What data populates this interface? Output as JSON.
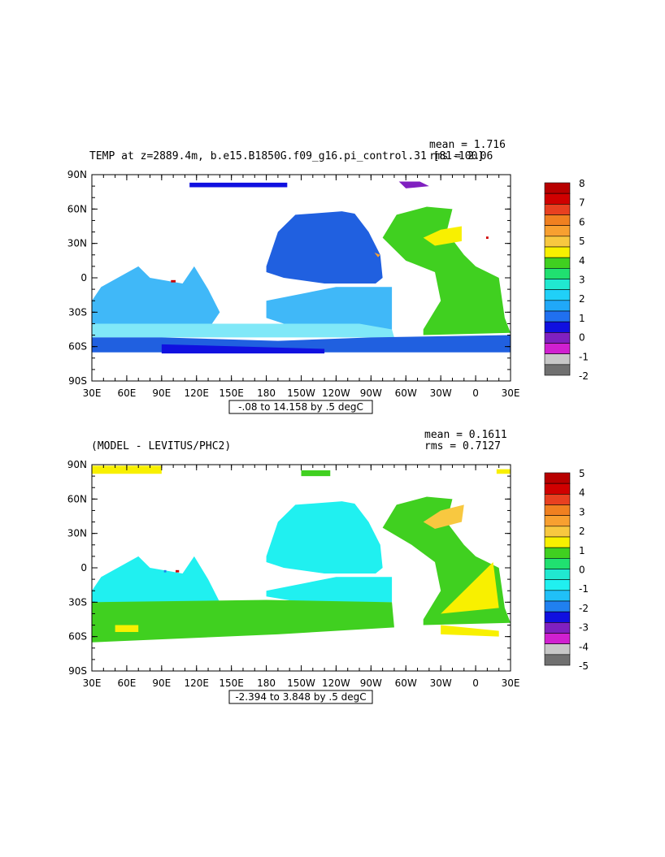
{
  "panels": [
    {
      "title": "TEMP at z=2889.4m, b.e15.B1850G.f09_g16.pi_control.31 [81-100]",
      "stats": {
        "mean": "mean = 1.716",
        "rms": "rms = 2.06"
      },
      "range_label": "-.08 to 14.158 by .5 degC",
      "colorbar": {
        "labels": [
          "8",
          "7",
          "6",
          "5",
          "4",
          "3",
          "2",
          "1",
          "0",
          "-1",
          "-2"
        ],
        "colors": [
          "#b80000",
          "#d00000",
          "#e84020",
          "#f08020",
          "#f8a030",
          "#f8c840",
          "#f8f000",
          "#40d020",
          "#20e070",
          "#20e8d0",
          "#20d0f8",
          "#20a8f8",
          "#2070f0",
          "#1010e0",
          "#8020c0",
          "#d020d0",
          "#c8c8c8",
          "#707070"
        ]
      },
      "regions": [
        "#2060e0",
        "#40b8f8",
        "#80e8f8",
        "#40d020",
        "#f8f000",
        "#1010e0",
        "#8020c0",
        "#f8a030",
        "#d00000"
      ]
    },
    {
      "title": "(MODEL - LEVITUS/PHC2)",
      "stats": {
        "mean": "mean = 0.1611",
        "rms": "rms = 0.7127"
      },
      "range_label": "-2.394 to 3.848 by .5 degC",
      "colorbar": {
        "labels": [
          "5",
          "4",
          "3",
          "2",
          "1",
          "0",
          "-1",
          "-2",
          "-3",
          "-4",
          "-5"
        ],
        "colors": [
          "#b80000",
          "#d00000",
          "#e84020",
          "#f08020",
          "#f8a030",
          "#f8c840",
          "#f8f000",
          "#40d020",
          "#20e070",
          "#20e8d0",
          "#20f0f0",
          "#20c0f8",
          "#2080f0",
          "#1010e0",
          "#8020c0",
          "#d020d0",
          "#c8c8c8",
          "#707070"
        ]
      },
      "regions": [
        "#20f0f0",
        "#40d020",
        "#f8f000",
        "#f8c840",
        "#2080f0",
        "#d00000"
      ]
    }
  ],
  "axes": {
    "x_ticks": [
      "30E",
      "60E",
      "90E",
      "120E",
      "150E",
      "180",
      "150W",
      "120W",
      "90W",
      "60W",
      "30W",
      "0",
      "30E"
    ],
    "y_ticks": [
      "90N",
      "60N",
      "30N",
      "0",
      "30S",
      "60S",
      "90S"
    ]
  }
}
